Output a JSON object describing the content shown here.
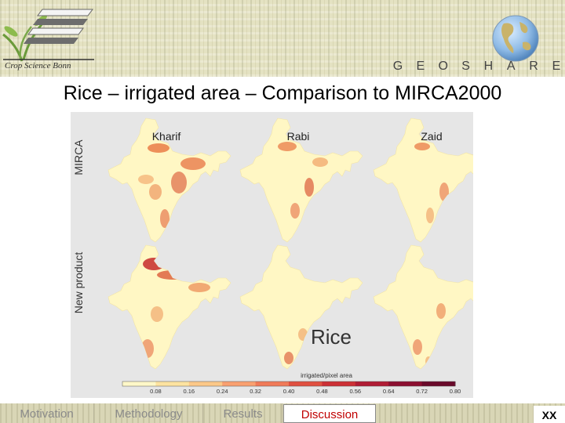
{
  "header": {
    "logo_text": "Crop Science Bonn",
    "brand_letters": [
      "G",
      "E",
      "O",
      "S",
      "H",
      "A",
      "R",
      "E"
    ]
  },
  "slide": {
    "title": "Rice – irrigated area – Comparison to MIRCA2000"
  },
  "figure": {
    "columns": [
      "Kharif",
      "Rabi",
      "Zaid"
    ],
    "rows": [
      "MIRCA",
      "New product"
    ],
    "crop_label": "Rice",
    "colorbar": {
      "label": "irrigated/pixel area",
      "ticks": [
        "0.08",
        "0.16",
        "0.24",
        "0.32",
        "0.40",
        "0.48",
        "0.56",
        "0.64",
        "0.72",
        "0.80"
      ],
      "colors": [
        "#fff8c8",
        "#fde3a0",
        "#fcc888",
        "#f9a070",
        "#f07a58",
        "#e05040",
        "#cc3035",
        "#b01c34",
        "#8c0f30",
        "#6a0a2a"
      ]
    }
  },
  "nav": {
    "items": [
      "Motivation",
      "Methodology",
      "Results",
      "Discussion"
    ],
    "active": "Discussion",
    "page": "XX"
  },
  "colors": {
    "title_text": "#000000",
    "active_nav": "#c00000",
    "map_base": "#fff7c4",
    "figure_bg": "#e6e6e6"
  }
}
